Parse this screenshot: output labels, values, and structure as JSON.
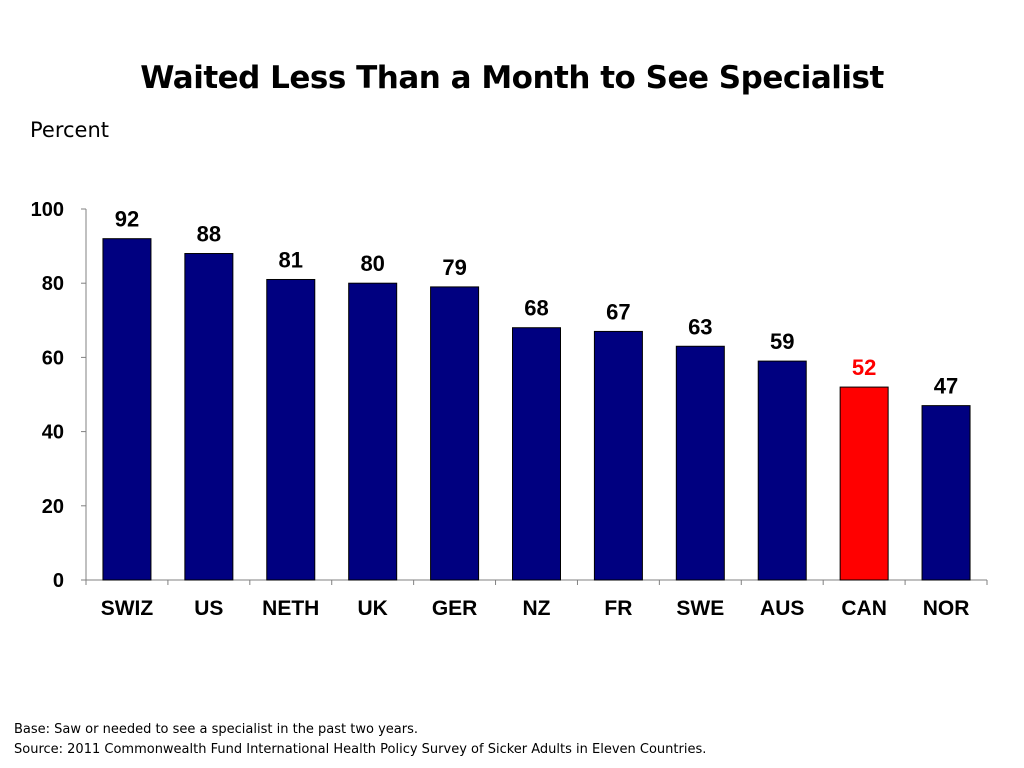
{
  "page": {
    "title": "Waited Less Than a Month to See Specialist",
    "unit_label": "Percent",
    "footnote_base": "Base: Saw or needed to see a specialist in the past two years.",
    "footnote_source": "Source: 2011 Commonwealth Fund International Health Policy Survey of Sicker Adults in Eleven Countries."
  },
  "chart_data": {
    "type": "bar",
    "title": "Waited Less Than a Month to See Specialist",
    "ylabel": "Percent",
    "xlabel": "",
    "categories": [
      "SWIZ",
      "US",
      "NETH",
      "UK",
      "GER",
      "NZ",
      "FR",
      "SWE",
      "AUS",
      "CAN",
      "NOR"
    ],
    "values": [
      92,
      88,
      81,
      80,
      79,
      68,
      67,
      63,
      59,
      52,
      47
    ],
    "data_labels": [
      "92",
      "88",
      "81",
      "80",
      "79",
      "68",
      "67",
      "63",
      "59",
      "52",
      "47"
    ],
    "highlight_category": "CAN",
    "ylim": [
      0,
      100
    ],
    "yticks": [
      0,
      20,
      40,
      60,
      80,
      100
    ],
    "grid": false,
    "legend": "none",
    "colors": {
      "bar": "#000080",
      "highlight_bar": "#ff0000",
      "highlight_label": "#ff0000",
      "label": "#000000",
      "axis": "#808080"
    }
  }
}
